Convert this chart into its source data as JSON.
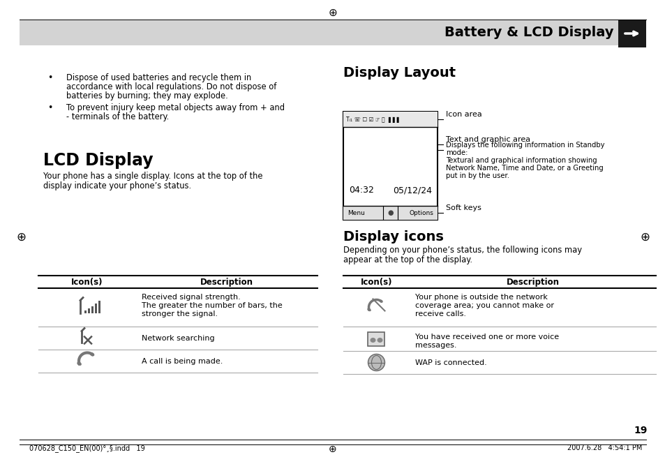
{
  "bg_color": "#ffffff",
  "header_bg": "#d3d3d3",
  "header_text": "Battery & LCD Display",
  "header_icon_bg": "#1a1a1a",
  "page_number": "19",
  "footer_left": "070628_C150_EN(00)°¸§.indd   19",
  "footer_right": "2007.6.28   4:54:1 PM",
  "bullet1": [
    "Dispose of used batteries and recycle them in",
    "accordance with local regulations. Do not dispose of",
    "batteries by burning; they may explode."
  ],
  "bullet2": [
    "To prevent injury keep metal objects away from + and",
    "- terminals of the battery."
  ],
  "lcd_title": "LCD Display",
  "lcd_body": [
    "Your phone has a single display. Icons at the top of the",
    "display indicate your phone’s status."
  ],
  "display_layout_title": "Display Layout",
  "label1": "Icon area",
  "label2": "Text and graphic area",
  "label3": [
    "Displays the following information in Standby",
    "mode:",
    "Textural and graphical information showing",
    "Network Name, Time and Date, or a Greeting",
    "put in by the user."
  ],
  "label4": "Soft keys",
  "display_icons_title": "Display icons",
  "icons_body": [
    "Depending on your phone’s status, the following icons may",
    "appear at the top of the display."
  ],
  "lt_h1": "Icon(s)",
  "lt_h2": "Description",
  "lt_r1d": [
    "Received signal strength.",
    "The greater the number of bars, the",
    "stronger the signal."
  ],
  "lt_r2d": "Network searching",
  "lt_r3d": "A call is being made.",
  "rt_h1": "Icon(s)",
  "rt_h2": "Description",
  "rt_r1d": [
    "Your phone is outside the network",
    "coverage area; you cannot make or",
    "receive calls."
  ],
  "rt_r2d": [
    "You have received one or more voice",
    "messages."
  ],
  "rt_r3d": "WAP is connected."
}
